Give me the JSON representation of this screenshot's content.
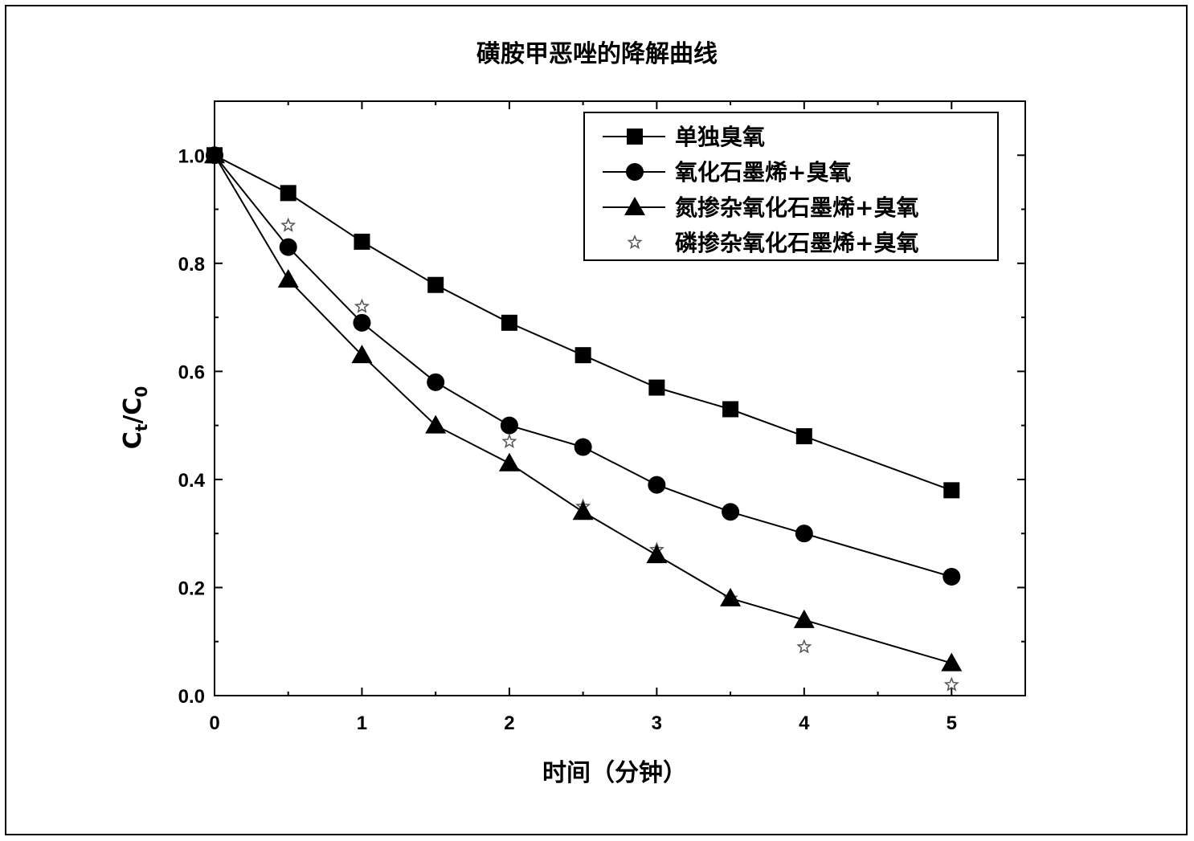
{
  "chart_data": {
    "type": "line",
    "title": "磺胺甲恶唑的降解曲线",
    "xlabel": "时间（分钟）",
    "ylabel": "Ct/C0",
    "ylabel_main": "C",
    "ylabel_sub1": "t",
    "ylabel_slash": "/C",
    "ylabel_sub2": "0",
    "xlim": [
      0,
      5.5
    ],
    "ylim": [
      0,
      1.1
    ],
    "xticks": [
      0,
      1,
      2,
      3,
      4,
      5
    ],
    "yticks": [
      0.0,
      0.2,
      0.4,
      0.6,
      0.8,
      1.0
    ],
    "ytick_labels": [
      "0.0",
      "0.2",
      "0.4",
      "0.6",
      "0.8",
      "1.0"
    ],
    "grid": false,
    "legend_position": "top-right",
    "x": [
      0,
      0.5,
      1,
      1.5,
      2,
      2.5,
      3,
      3.5,
      4,
      5
    ],
    "series": [
      {
        "name": "单独臭氧",
        "marker": "square",
        "line": true,
        "values": [
          1.0,
          0.93,
          0.84,
          0.76,
          0.69,
          0.63,
          0.57,
          0.53,
          0.48,
          0.38
        ]
      },
      {
        "name": "氧化石墨烯+臭氧",
        "marker": "circle",
        "line": true,
        "values": [
          1.0,
          0.83,
          0.69,
          0.58,
          0.5,
          0.46,
          0.39,
          0.34,
          0.3,
          0.22
        ]
      },
      {
        "name": "氮掺杂氧化石墨烯+臭氧",
        "marker": "triangle",
        "line": true,
        "values": [
          1.0,
          0.77,
          0.63,
          0.5,
          0.43,
          0.34,
          0.26,
          0.18,
          0.14,
          0.06
        ]
      },
      {
        "name": "磷掺杂氧化石墨烯+臭氧",
        "marker": "star",
        "line": false,
        "values": [
          1.0,
          0.87,
          0.72,
          0.58,
          0.47,
          0.35,
          0.27,
          0.18,
          0.09,
          0.02
        ]
      }
    ]
  }
}
